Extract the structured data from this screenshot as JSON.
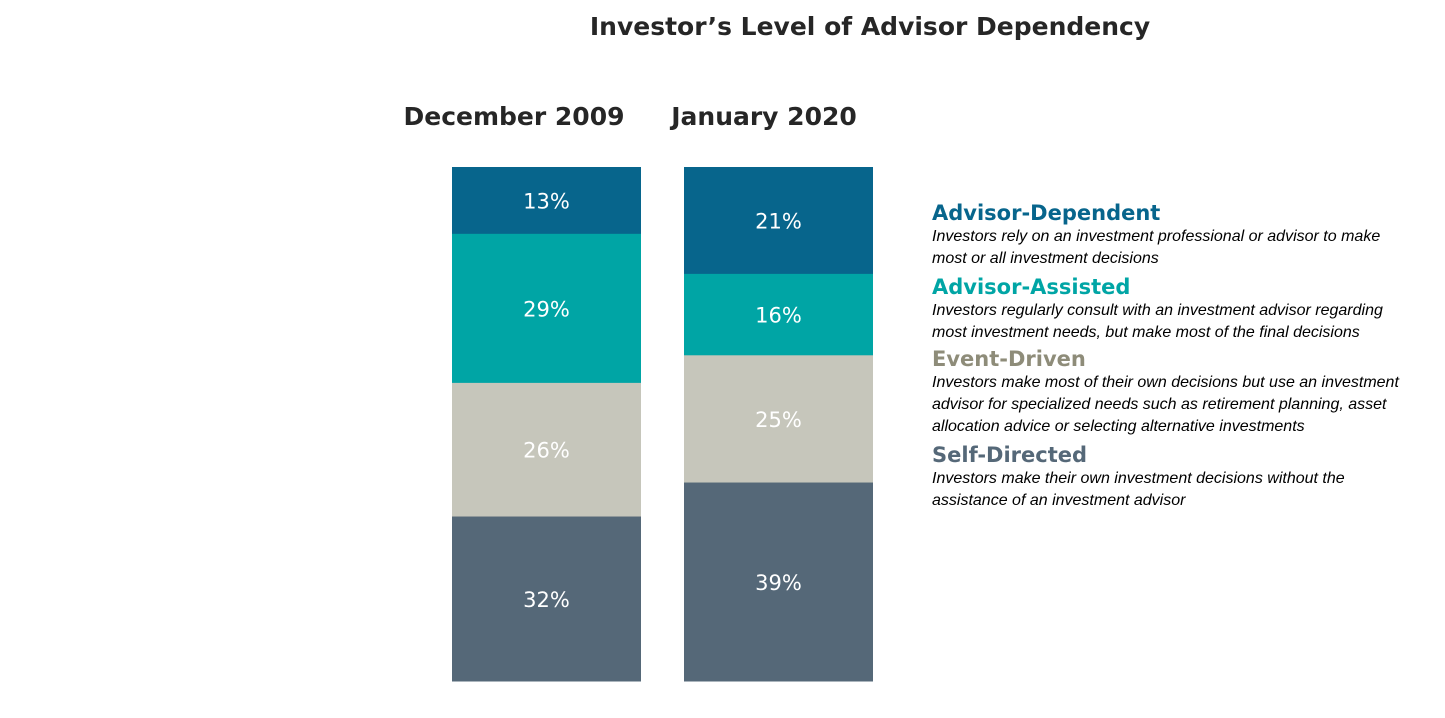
{
  "chart_data": {
    "type": "bar",
    "stacked": true,
    "title": "Investor’s Level of Advisor Dependency",
    "categories": [
      "December 2009",
      "January 2020"
    ],
    "series": [
      {
        "name": "Advisor-Dependent",
        "color": "#07658C",
        "values": [
          13,
          21
        ],
        "labels": [
          "13%",
          "21%"
        ]
      },
      {
        "name": "Advisor-Assisted",
        "color": "#00A5A5",
        "values": [
          29,
          16
        ],
        "labels": [
          "29%",
          "16%"
        ]
      },
      {
        "name": "Event-Driven",
        "color": "#C6C6BB",
        "values": [
          26,
          25
        ],
        "labels": [
          "26%",
          "25%"
        ]
      },
      {
        "name": "Self-Directed",
        "color": "#556878",
        "values": [
          32,
          39
        ],
        "labels": [
          "32%",
          "39%"
        ]
      }
    ],
    "legend_title_colors": [
      "#07658C",
      "#00A5A5",
      "#8E8C79",
      "#556878"
    ],
    "legend": [
      {
        "name": "Advisor-Dependent",
        "description": "Investors rely on an investment professional or advisor to make most or all investment decisions"
      },
      {
        "name": "Advisor-Assisted",
        "description": "Investors regularly consult with an investment advisor regarding most investment needs, but make most of the final decisions"
      },
      {
        "name": "Event-Driven",
        "description": "Investors make most of their own decisions but use an investment advisor for specialized needs such as retirement planning, asset allocation advice or selecting alternative investments"
      },
      {
        "name": "Self-Directed",
        "description": "Investors make their own investment decisions without the assistance of an investment advisor"
      }
    ],
    "legend_placement": "right"
  }
}
